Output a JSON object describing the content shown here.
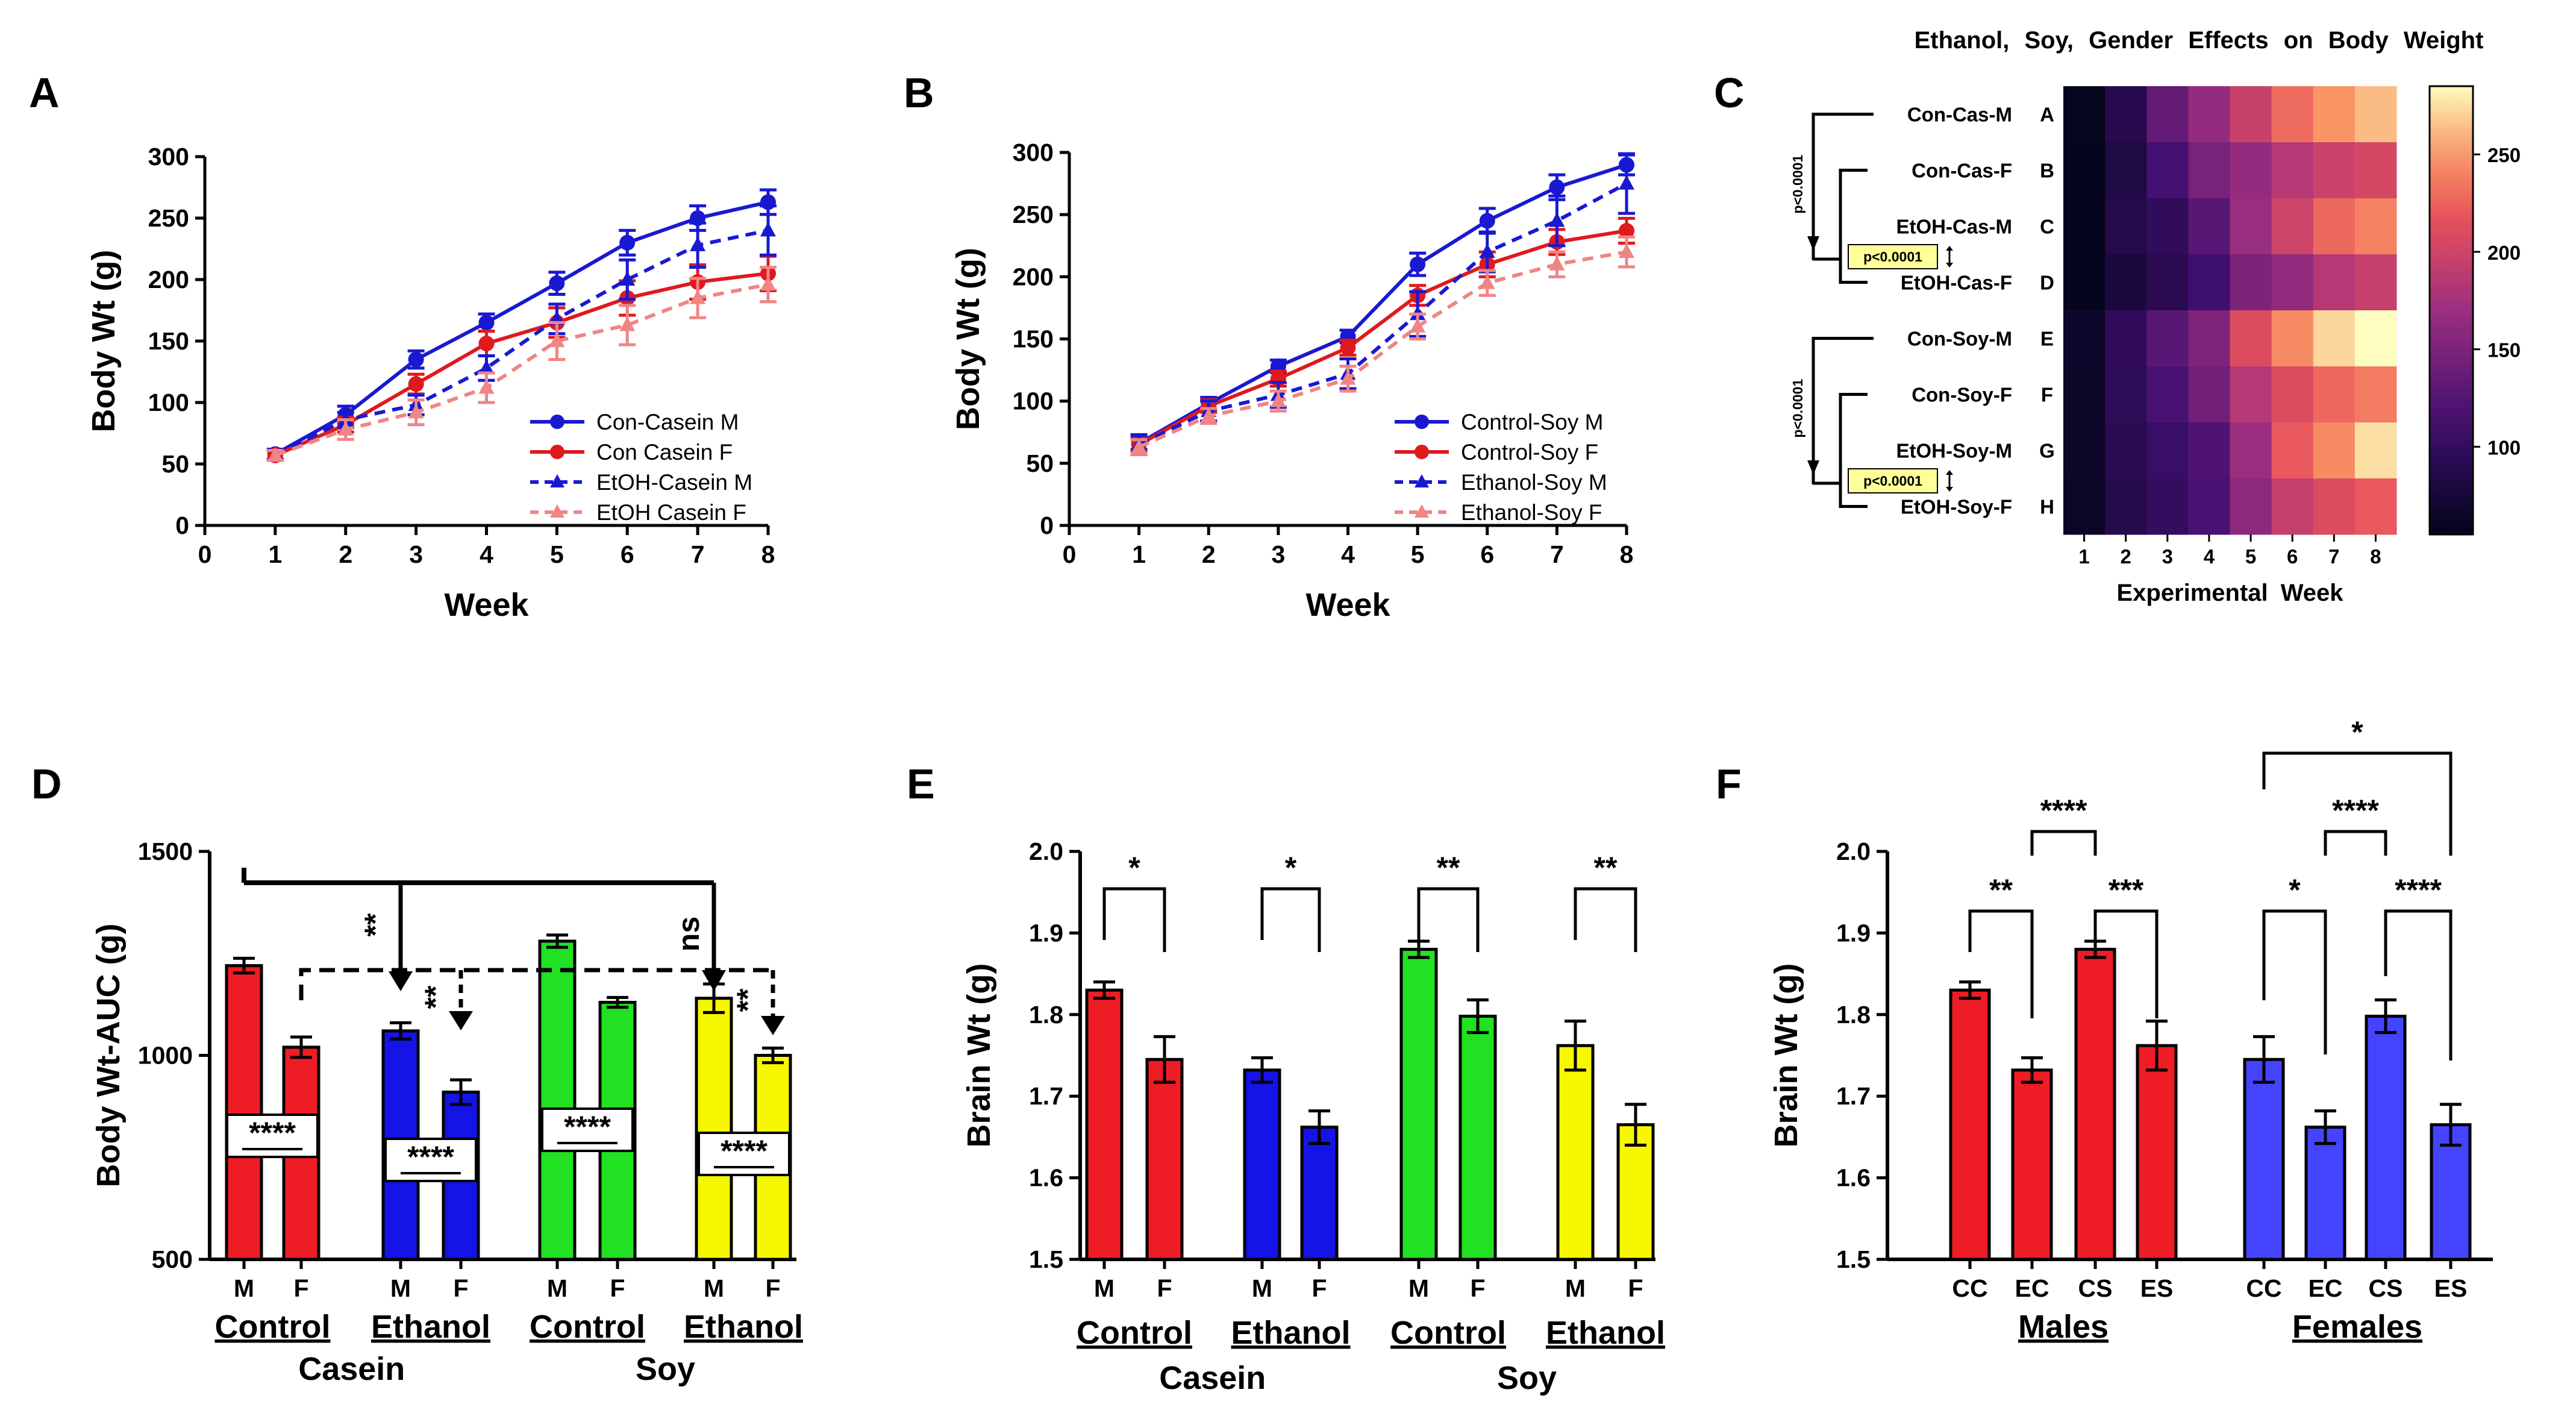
{
  "panels": {
    "A": {
      "letter": "A"
    },
    "B": {
      "letter": "B"
    },
    "C": {
      "letter": "C"
    },
    "D": {
      "letter": "D"
    },
    "E": {
      "letter": "E"
    },
    "F": {
      "letter": "F"
    }
  },
  "chart_data": [
    {
      "id": "A",
      "type": "line",
      "xlabel": "Week",
      "ylabel": "Body Wt (g)",
      "xlim": [
        0,
        8
      ],
      "ylim": [
        0,
        300
      ],
      "x_ticks": [
        0,
        1,
        2,
        3,
        4,
        5,
        6,
        7,
        8
      ],
      "y_ticks": [
        0,
        50,
        100,
        150,
        200,
        250,
        300
      ],
      "x": [
        1,
        2,
        3,
        4,
        5,
        6,
        7,
        8
      ],
      "series": [
        {
          "name": "Con-Casein M",
          "color": "#1919d2",
          "style": "solid",
          "marker": "circle",
          "values": [
            58,
            90,
            135,
            165,
            197,
            230,
            250,
            263
          ],
          "errors": [
            4,
            7,
            7,
            7,
            9,
            10,
            10,
            10
          ]
        },
        {
          "name": "Con Casein F",
          "color": "#e0191e",
          "style": "solid",
          "marker": "circle",
          "values": [
            57,
            82,
            115,
            148,
            165,
            185,
            198,
            205
          ],
          "errors": [
            4,
            6,
            8,
            10,
            12,
            14,
            14,
            14
          ]
        },
        {
          "name": "EtOH-Casein M",
          "color": "#1919d2",
          "style": "dashed",
          "marker": "triangle",
          "values": [
            57,
            86,
            98,
            128,
            168,
            200,
            228,
            240
          ],
          "errors": [
            4,
            6,
            8,
            10,
            12,
            16,
            18,
            20
          ]
        },
        {
          "name": "EtOH Casein F",
          "color": "#ef8585",
          "style": "dashed",
          "marker": "triangle",
          "values": [
            57,
            78,
            92,
            112,
            150,
            163,
            185,
            196
          ],
          "errors": [
            4,
            8,
            10,
            12,
            15,
            16,
            16,
            14
          ]
        }
      ]
    },
    {
      "id": "B",
      "type": "line",
      "xlabel": "Week",
      "ylabel": "Body Wt (g)",
      "xlim": [
        0,
        8
      ],
      "ylim": [
        0,
        300
      ],
      "x_ticks": [
        0,
        1,
        2,
        3,
        4,
        5,
        6,
        7,
        8
      ],
      "y_ticks": [
        0,
        50,
        100,
        150,
        200,
        250,
        300
      ],
      "x": [
        1,
        2,
        3,
        4,
        5,
        6,
        7,
        8
      ],
      "series": [
        {
          "name": "Control-Soy M",
          "color": "#1919d2",
          "style": "solid",
          "marker": "circle",
          "values": [
            66,
            98,
            128,
            152,
            210,
            245,
            272,
            290
          ],
          "errors": [
            5,
            5,
            5,
            5,
            9,
            10,
            10,
            8
          ]
        },
        {
          "name": "Control-Soy F",
          "color": "#e0191e",
          "style": "solid",
          "marker": "circle",
          "values": [
            65,
            96,
            118,
            143,
            185,
            210,
            228,
            237
          ],
          "errors": [
            5,
            5,
            6,
            6,
            8,
            10,
            10,
            10
          ]
        },
        {
          "name": "Ethanol-Soy M",
          "color": "#1919d2",
          "style": "dashed",
          "marker": "triangle",
          "values": [
            65,
            92,
            105,
            122,
            170,
            220,
            245,
            275
          ],
          "errors": [
            8,
            8,
            10,
            12,
            18,
            16,
            20,
            24
          ]
        },
        {
          "name": "Ethanol-Soy F",
          "color": "#ef8585",
          "style": "dashed",
          "marker": "triangle",
          "values": [
            63,
            88,
            100,
            118,
            160,
            195,
            210,
            220
          ],
          "errors": [
            6,
            6,
            8,
            10,
            10,
            10,
            10,
            12
          ]
        }
      ]
    },
    {
      "id": "C",
      "type": "heatmap",
      "title": "Ethanol, Soy, Gender Effects on Body Weight",
      "xlabel": "Experimental Week",
      "columns": [
        "1",
        "2",
        "3",
        "4",
        "5",
        "6",
        "7",
        "8"
      ],
      "row_letters": [
        "A",
        "B",
        "C",
        "D",
        "E",
        "F",
        "G",
        "H"
      ],
      "row_names": [
        "Con-Cas-M",
        "Con-Cas-F",
        "EtOH-Cas-M",
        "EtOH-Cas-F",
        "Con-Soy-M",
        "Con-Soy-F",
        "EtOH-Soy-M",
        "EtOH-Soy-F"
      ],
      "values": [
        [
          58,
          90,
          135,
          165,
          197,
          230,
          250,
          263
        ],
        [
          57,
          82,
          115,
          148,
          165,
          185,
          198,
          205
        ],
        [
          57,
          86,
          98,
          128,
          168,
          200,
          228,
          240
        ],
        [
          57,
          78,
          92,
          112,
          150,
          163,
          185,
          196
        ],
        [
          66,
          98,
          128,
          152,
          210,
          245,
          272,
          290
        ],
        [
          65,
          96,
          118,
          143,
          185,
          210,
          228,
          237
        ],
        [
          65,
          92,
          105,
          122,
          170,
          220,
          245,
          275
        ],
        [
          63,
          88,
          100,
          118,
          160,
          195,
          210,
          220
        ]
      ],
      "colorbar_range": [
        55,
        285
      ],
      "colorbar_ticks": [
        100,
        150,
        200,
        250
      ],
      "annotations": {
        "outer_p": "p<0.0001",
        "inner_p": "p<0.0001"
      }
    },
    {
      "id": "D",
      "type": "bar",
      "ylabel": "Body Wt-AUC (g)",
      "ylim": [
        500,
        1500
      ],
      "y_ticks": [
        500,
        1000,
        1500
      ],
      "categories": [
        "M",
        "F",
        "M",
        "F",
        "M",
        "F",
        "M",
        "F"
      ],
      "values": [
        1220,
        1020,
        1060,
        910,
        1280,
        1130,
        1140,
        1000
      ],
      "errors": [
        18,
        25,
        20,
        30,
        15,
        12,
        35,
        18
      ],
      "colors": [
        "#ee1c24",
        "#ee1c24",
        "#1414e6",
        "#1414e6",
        "#22e022",
        "#22e022",
        "#f7f700",
        "#f7f700"
      ],
      "group_labels": [
        "Control",
        "Ethanol",
        "Control",
        "Ethanol"
      ],
      "diet_labels": [
        "Casein",
        "Soy"
      ],
      "significance": {
        "box": "****",
        "arrow1": "**",
        "arrow2": "**",
        "arrow3": "ns",
        "arrow4": "**"
      }
    },
    {
      "id": "E",
      "type": "bar",
      "ylabel": "Brain Wt (g)",
      "ylim": [
        1.5,
        2.0
      ],
      "y_ticks": [
        "1.5",
        "1.6",
        "1.7",
        "1.8",
        "1.9",
        "2.0"
      ],
      "categories": [
        "M",
        "F",
        "M",
        "F",
        "M",
        "F",
        "M",
        "F"
      ],
      "values": [
        1.83,
        1.745,
        1.732,
        1.662,
        1.88,
        1.798,
        1.762,
        1.665
      ],
      "errors": [
        0.01,
        0.028,
        0.015,
        0.02,
        0.01,
        0.02,
        0.03,
        0.025
      ],
      "colors": [
        "#ee1c24",
        "#ee1c24",
        "#1414e6",
        "#1414e6",
        "#22e022",
        "#22e022",
        "#f7f700",
        "#f7f700"
      ],
      "group_labels": [
        "Control",
        "Ethanol",
        "Control",
        "Ethanol"
      ],
      "diet_labels": [
        "Casein",
        "Soy"
      ],
      "significance": [
        "*",
        "*",
        "**",
        "**"
      ]
    },
    {
      "id": "F",
      "type": "bar",
      "ylabel": "Brain Wt (g)",
      "ylim": [
        1.5,
        2.0
      ],
      "y_ticks": [
        "1.5",
        "1.6",
        "1.7",
        "1.8",
        "1.9",
        "2.0"
      ],
      "categories": [
        "CC",
        "EC",
        "CS",
        "ES",
        "CC",
        "EC",
        "CS",
        "ES"
      ],
      "values": [
        1.83,
        1.732,
        1.88,
        1.762,
        1.745,
        1.662,
        1.798,
        1.665
      ],
      "errors": [
        0.01,
        0.015,
        0.01,
        0.03,
        0.028,
        0.02,
        0.02,
        0.025
      ],
      "colors": [
        "#ee1c24",
        "#ee1c24",
        "#ee1c24",
        "#ee1c24",
        "#4444ff",
        "#4444ff",
        "#4444ff",
        "#4444ff"
      ],
      "group_labels": [
        "Males",
        "Females"
      ],
      "significance": {
        "males": [
          "**",
          "****",
          "***"
        ],
        "females": [
          "*",
          "****",
          "****",
          "*"
        ]
      }
    }
  ]
}
